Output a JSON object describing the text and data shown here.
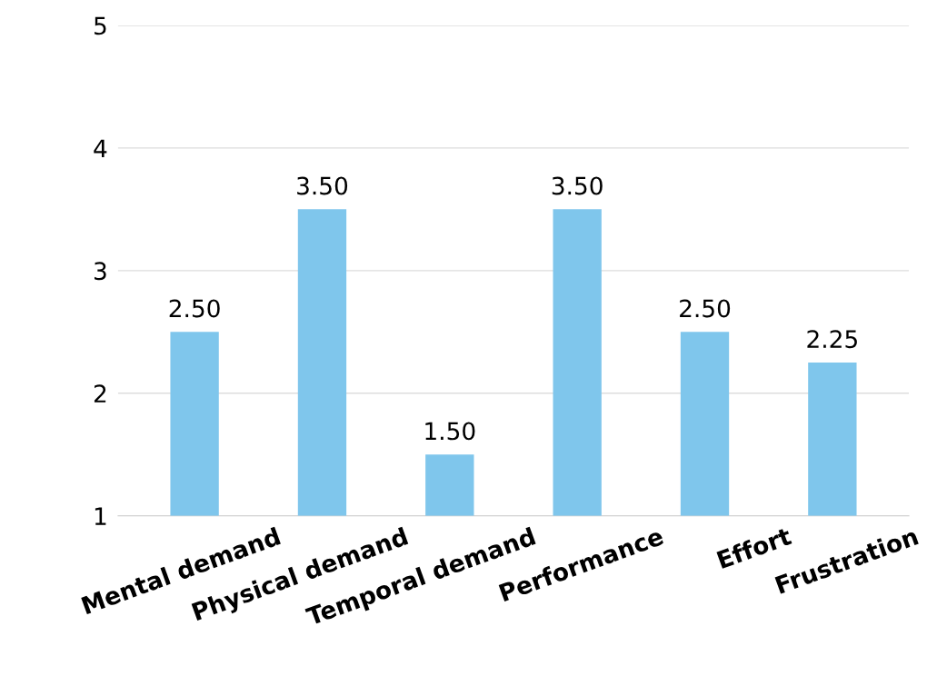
{
  "chart_data": {
    "type": "bar",
    "categories": [
      "Mental demand",
      "Physical demand",
      "Temporal demand",
      "Performance",
      "Effort",
      "Frustration"
    ],
    "values": [
      2.5,
      3.5,
      1.5,
      3.5,
      2.5,
      2.25
    ],
    "color": "#7fc6ec",
    "ylim": [
      1,
      5
    ],
    "yticks": [
      1,
      2,
      3,
      4,
      5
    ],
    "grid": "y",
    "value_labels": [
      "2.50",
      "3.50",
      "1.50",
      "3.50",
      "2.50",
      "2.25"
    ]
  }
}
